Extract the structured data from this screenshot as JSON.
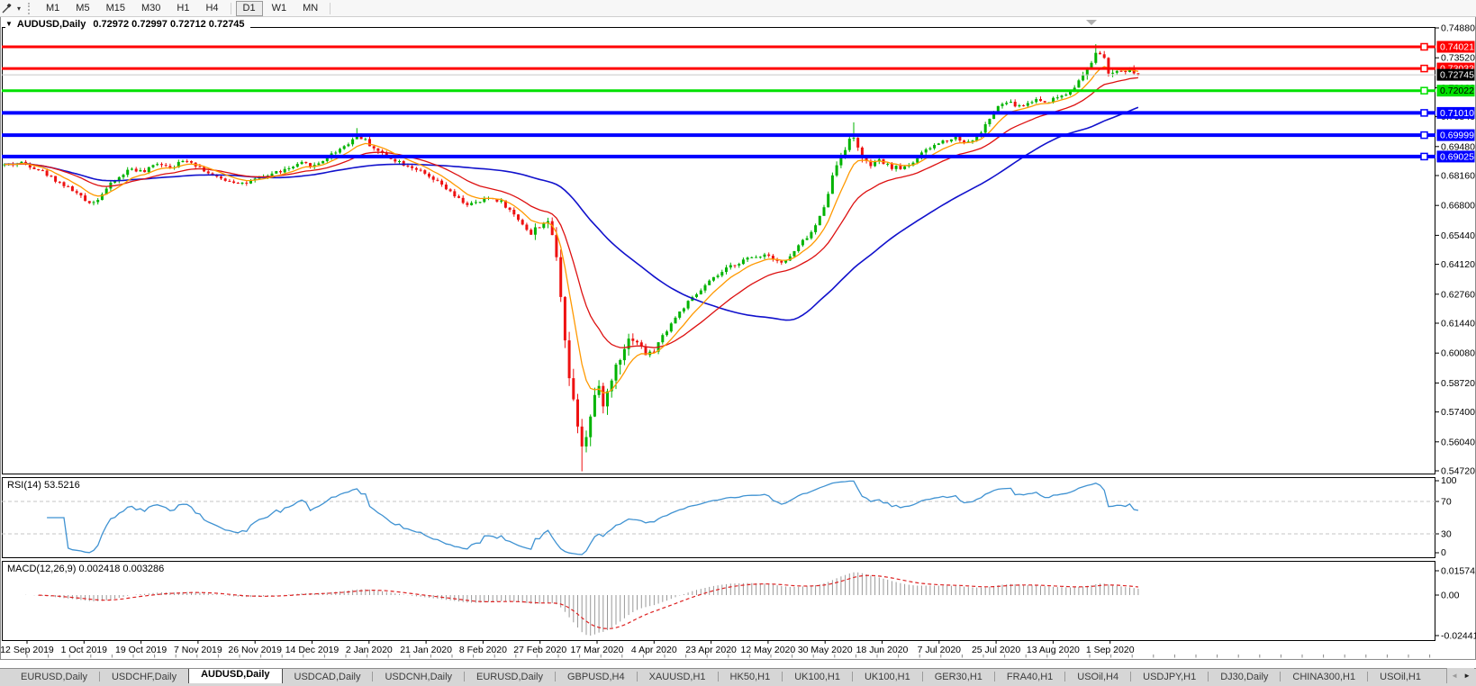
{
  "toolbar": {
    "timeframes": [
      "M1",
      "M5",
      "M15",
      "M30",
      "H1",
      "H4",
      "D1",
      "W1",
      "MN"
    ],
    "active_timeframe": "D1",
    "dropdown_caret": "▾"
  },
  "chart": {
    "title_symbol": "AUDUSD,Daily",
    "title_ohlc": "0.72972 0.72997 0.72712 0.72745",
    "price_axis_ticks": [
      "0.74880",
      "0.73520",
      "0.72160",
      "0.70840",
      "0.69480",
      "0.68160",
      "0.66800",
      "0.65440",
      "0.64120",
      "0.62760",
      "0.61440",
      "0.60080",
      "0.58720",
      "0.57400",
      "0.56040",
      "0.54720"
    ],
    "current_price": {
      "label": "0.72745",
      "badge_bg": "#000000",
      "badge_text": "#ffffff",
      "line_color": "#c8c8c8"
    },
    "hlines": [
      {
        "label": "0.74021",
        "price": 0.74021,
        "color": "#ff0000",
        "width": 3,
        "text_color": "#ffffff"
      },
      {
        "label": "0.73033",
        "price": 0.73033,
        "color": "#ff0000",
        "width": 3,
        "text_color": "#ffffff"
      },
      {
        "label": "0.72022",
        "price": 0.72022,
        "color": "#00e000",
        "width": 3,
        "text_color": "#000000"
      },
      {
        "label": "0.71010",
        "price": 0.7101,
        "color": "#0000ff",
        "width": 4,
        "text_color": "#ffffff"
      },
      {
        "label": "0.69999",
        "price": 0.69999,
        "color": "#0000ff",
        "width": 4,
        "text_color": "#ffffff"
      },
      {
        "label": "0.69025",
        "price": 0.69025,
        "color": "#0000ff",
        "width": 4,
        "text_color": "#ffffff"
      }
    ],
    "colors": {
      "up_candle": "#00b300",
      "down_candle": "#ee1111",
      "ma_fast": "#ff9900",
      "ma_mid": "#dd1111",
      "ma_slow": "#1111cc",
      "frame": "#000000",
      "shift_marker": "#b0b0b0"
    }
  },
  "rsi": {
    "label": "RSI(14) 53.5216",
    "period": 14,
    "value": 53.5216,
    "axis_labels": [
      "100",
      "70",
      "30",
      "0"
    ],
    "line_color": "#3f92d2",
    "level_color": "#c4c4c4"
  },
  "macd": {
    "label": "MACD(12,26,9) 0.002418 0.003286",
    "params": [
      12,
      26,
      9
    ],
    "value": 0.002418,
    "signal": 0.003286,
    "axis_max": "0.015741",
    "axis_zero": "0.00",
    "axis_min": "-0.024412",
    "hist_color": "#999999",
    "signal_color": "#dd2222"
  },
  "date_axis": [
    "12 Sep 2019",
    "1 Oct 2019",
    "19 Oct 2019",
    "7 Nov 2019",
    "26 Nov 2019",
    "14 Dec 2019",
    "2 Jan 2020",
    "21 Jan 2020",
    "8 Feb 2020",
    "27 Feb 2020",
    "17 Mar 2020",
    "4 Apr 2020",
    "23 Apr 2020",
    "12 May 2020",
    "30 May 2020",
    "18 Jun 2020",
    "7 Jul 2020",
    "25 Jul 2020",
    "13 Aug 2020",
    "1 Sep 2020"
  ],
  "tabs": {
    "items": [
      "EURUSD,Daily",
      "USDCHF,Daily",
      "AUDUSD,Daily",
      "USDCAD,Daily",
      "USDCNH,Daily",
      "EURUSD,Daily",
      "GBPUSD,H4",
      "XAUUSD,H1",
      "HK50,H1",
      "UK100,H1",
      "UK100,H1",
      "GER30,H1",
      "FRA40,H1",
      "USOil,H4",
      "USDJPY,H1",
      "DJ30,Daily",
      "CHINA300,H1",
      "USOil,H1"
    ],
    "active_index": 2,
    "scroll_left": "◄",
    "scroll_right": "►"
  },
  "chart_data": {
    "type": "candlestick",
    "symbol": "AUDUSD",
    "timeframe": "Daily",
    "current_ohlc": {
      "open": 0.72972,
      "high": 0.72997,
      "low": 0.72712,
      "close": 0.72745
    },
    "ylim": [
      0.5472,
      0.7488
    ],
    "x_labels": [
      "12 Sep 2019",
      "1 Oct 2019",
      "19 Oct 2019",
      "7 Nov 2019",
      "26 Nov 2019",
      "14 Dec 2019",
      "2 Jan 2020",
      "21 Jan 2020",
      "8 Feb 2020",
      "27 Feb 2020",
      "17 Mar 2020",
      "4 Apr 2020",
      "23 Apr 2020",
      "12 May 2020",
      "30 May 2020",
      "18 Jun 2020",
      "7 Jul 2020",
      "25 Jul 2020",
      "13 Aug 2020",
      "1 Sep 2020"
    ],
    "hlines": [
      0.74021,
      0.73033,
      0.72022,
      0.7101,
      0.69999,
      0.69025
    ],
    "extremes": {
      "low": 0.547,
      "low_date": "17 Mar 2020",
      "high": 0.7414,
      "high_date": "1 Sep 2020"
    },
    "price_path_anchors": [
      [
        5,
        0.6865
      ],
      [
        26,
        0.6875
      ],
      [
        45,
        0.684
      ],
      [
        60,
        0.68
      ],
      [
        82,
        0.6745
      ],
      [
        95,
        0.67
      ],
      [
        105,
        0.6695
      ],
      [
        120,
        0.6765
      ],
      [
        145,
        0.685
      ],
      [
        160,
        0.683
      ],
      [
        175,
        0.6875
      ],
      [
        190,
        0.6855
      ],
      [
        208,
        0.689
      ],
      [
        225,
        0.6845
      ],
      [
        240,
        0.6805
      ],
      [
        258,
        0.679
      ],
      [
        272,
        0.678
      ],
      [
        290,
        0.6805
      ],
      [
        305,
        0.683
      ],
      [
        320,
        0.6845
      ],
      [
        335,
        0.687
      ],
      [
        350,
        0.686
      ],
      [
        365,
        0.6905
      ],
      [
        380,
        0.6945
      ],
      [
        398,
        0.7
      ],
      [
        410,
        0.696
      ],
      [
        422,
        0.692
      ],
      [
        435,
        0.6895
      ],
      [
        448,
        0.687
      ],
      [
        461,
        0.685
      ],
      [
        475,
        0.681
      ],
      [
        490,
        0.6775
      ],
      [
        505,
        0.672
      ],
      [
        518,
        0.6685
      ],
      [
        530,
        0.669
      ],
      [
        542,
        0.6715
      ],
      [
        556,
        0.67
      ],
      [
        570,
        0.664
      ],
      [
        582,
        0.659
      ],
      [
        590,
        0.6545
      ],
      [
        598,
        0.659
      ],
      [
        606,
        0.661
      ],
      [
        614,
        0.6545
      ],
      [
        622,
        0.631
      ],
      [
        632,
        0.59
      ],
      [
        640,
        0.573
      ],
      [
        646,
        0.56
      ],
      [
        654,
        0.568
      ],
      [
        662,
        0.585
      ],
      [
        672,
        0.578
      ],
      [
        685,
        0.597
      ],
      [
        695,
        0.606
      ],
      [
        705,
        0.608
      ],
      [
        715,
        0.601
      ],
      [
        723,
        0.6
      ],
      [
        735,
        0.608
      ],
      [
        748,
        0.616
      ],
      [
        762,
        0.623
      ],
      [
        775,
        0.628
      ],
      [
        787,
        0.633
      ],
      [
        800,
        0.637
      ],
      [
        812,
        0.6405
      ],
      [
        825,
        0.643
      ],
      [
        838,
        0.6445
      ],
      [
        850,
        0.646
      ],
      [
        860,
        0.644
      ],
      [
        870,
        0.6415
      ],
      [
        880,
        0.646
      ],
      [
        892,
        0.652
      ],
      [
        902,
        0.656
      ],
      [
        913,
        0.665
      ],
      [
        922,
        0.678
      ],
      [
        932,
        0.69
      ],
      [
        942,
        0.697
      ],
      [
        950,
        0.699
      ],
      [
        958,
        0.688
      ],
      [
        966,
        0.686
      ],
      [
        977,
        0.6885
      ],
      [
        988,
        0.6855
      ],
      [
        1000,
        0.685
      ],
      [
        1012,
        0.687
      ],
      [
        1025,
        0.692
      ],
      [
        1040,
        0.696
      ],
      [
        1052,
        0.698
      ],
      [
        1062,
        0.699
      ],
      [
        1072,
        0.6965
      ],
      [
        1085,
        0.699
      ],
      [
        1095,
        0.705
      ],
      [
        1104,
        0.711
      ],
      [
        1112,
        0.714
      ],
      [
        1120,
        0.715
      ],
      [
        1130,
        0.713
      ],
      [
        1140,
        0.714
      ],
      [
        1150,
        0.7165
      ],
      [
        1160,
        0.715
      ],
      [
        1167,
        0.716
      ],
      [
        1175,
        0.7175
      ],
      [
        1185,
        0.719
      ],
      [
        1195,
        0.723
      ],
      [
        1203,
        0.727
      ],
      [
        1210,
        0.731
      ],
      [
        1218,
        0.739
      ],
      [
        1226,
        0.734
      ],
      [
        1233,
        0.727
      ],
      [
        1240,
        0.7285
      ],
      [
        1248,
        0.7295
      ],
      [
        1256,
        0.73
      ],
      [
        1264,
        0.7275
      ]
    ],
    "indicators": [
      {
        "name": "RSI",
        "period": 14,
        "current": 53.5216,
        "levels": [
          30,
          70
        ]
      },
      {
        "name": "MACD",
        "fast": 12,
        "slow": 26,
        "signal": 9,
        "current": 0.002418,
        "current_signal": 0.003286,
        "range": [
          -0.024412,
          0.015741
        ]
      },
      {
        "name": "MA-fast",
        "color": "#ff9900"
      },
      {
        "name": "MA-mid",
        "color": "#dd1111"
      },
      {
        "name": "MA-slow",
        "color": "#1111cc"
      }
    ]
  }
}
